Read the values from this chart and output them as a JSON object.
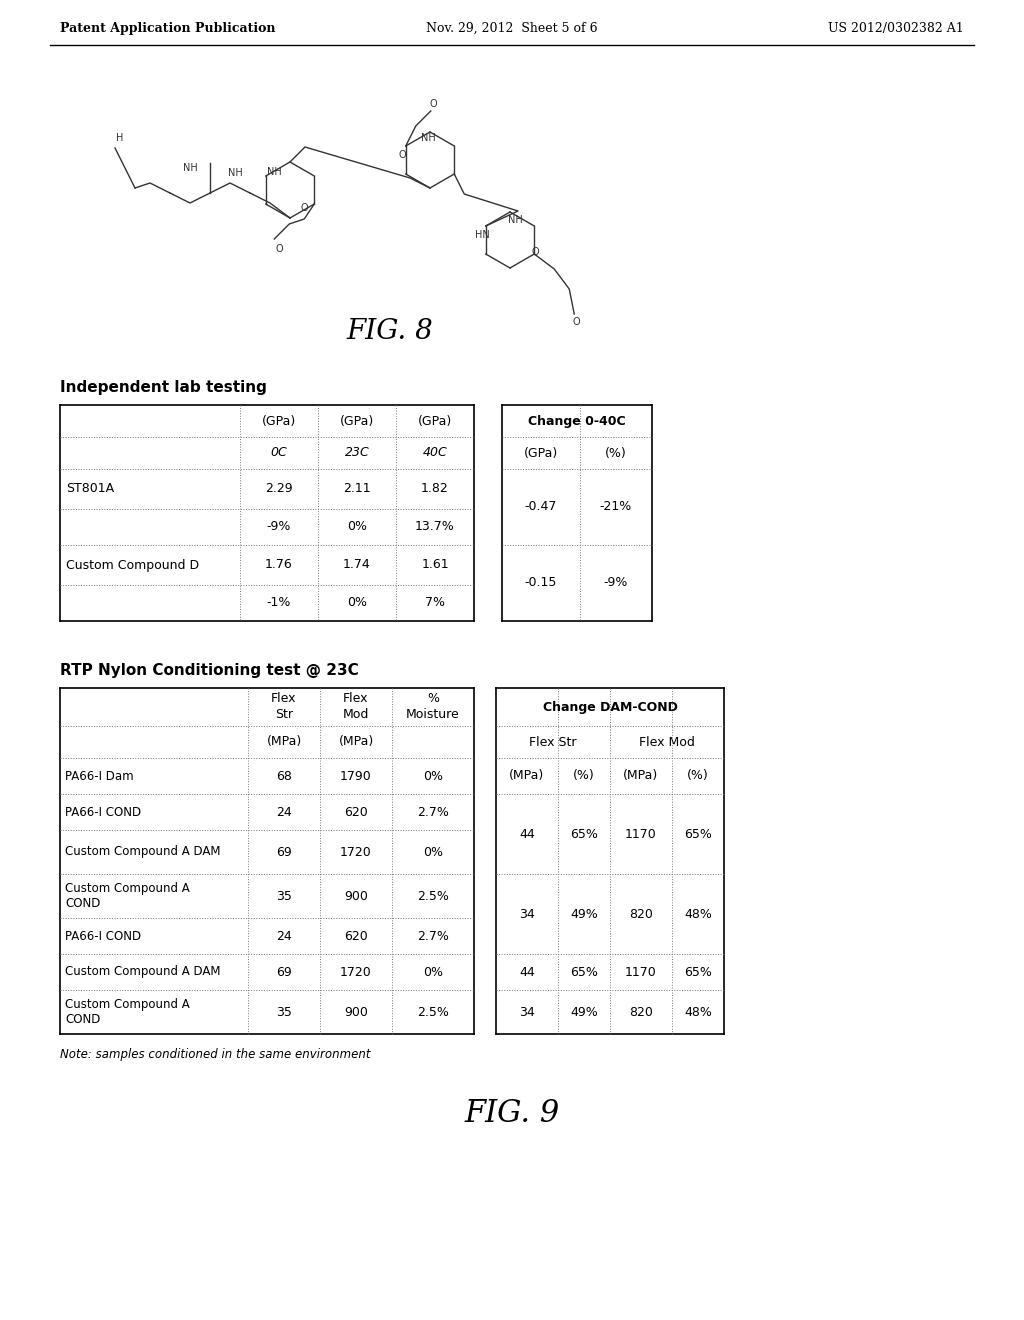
{
  "header_left": "Patent Application Publication",
  "header_center": "Nov. 29, 2012  Sheet 5 of 6",
  "header_right": "US 2012/0302382 A1",
  "fig8_label": "FIG. 8",
  "fig9_label": "FIG. 9",
  "table1_title": "Independent lab testing",
  "table2_title": "Change 0-40C",
  "table3_title": "RTP Nylon Conditioning test @ 23C",
  "table4_title": "Change DAM-COND",
  "table3_rows": [
    [
      "PA66-I Dam",
      "68",
      "1790",
      "0%"
    ],
    [
      "PA66-I COND",
      "24",
      "620",
      "2.7%"
    ],
    [
      "Custom Compound A DAM",
      "69",
      "1720",
      "0%"
    ],
    [
      "Custom Compound A\nCOND",
      "35",
      "900",
      "2.5%"
    ],
    [
      "PA66-I COND",
      "24",
      "620",
      "2.7%"
    ],
    [
      "Custom Compound A DAM",
      "69",
      "1720",
      "0%"
    ],
    [
      "Custom Compound A\nCOND",
      "35",
      "900",
      "2.5%"
    ]
  ],
  "note": "Note: samples conditioned in the same environment",
  "bg_color": "#ffffff",
  "text_color": "#000000"
}
